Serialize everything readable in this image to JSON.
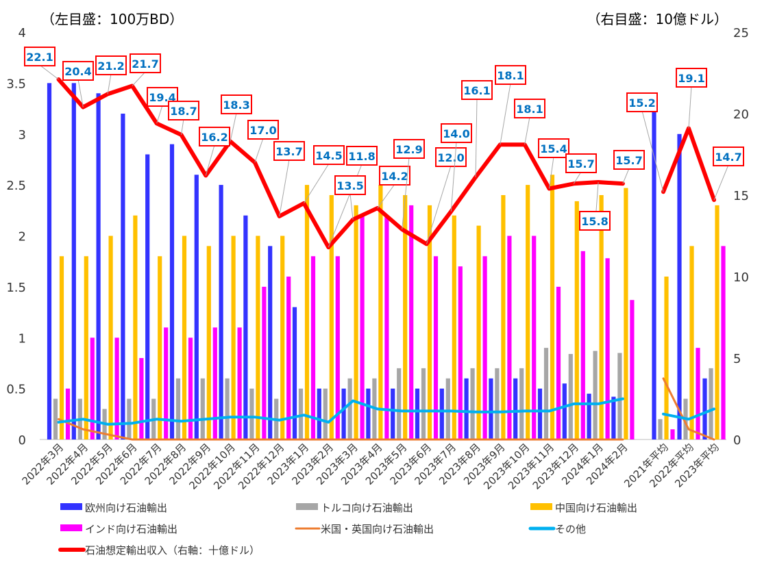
{
  "chart_data": {
    "type": "bar",
    "left_unit_label": "（左目盛：100万BD）",
    "right_unit_label": "（右目盛：10億ドル）",
    "categories": [
      "2022年3月",
      "2022年4月",
      "2022年5月",
      "2022年6月",
      "2022年7月",
      "2022年8月",
      "2022年9月",
      "2022年10月",
      "2022年11月",
      "2022年12月",
      "2023年1月",
      "2023年2月",
      "2023年3月",
      "2023年4月",
      "2023年5月",
      "2023年6月",
      "2023年7月",
      "2023年8月",
      "2023年9月",
      "2023年10月",
      "2023年11月",
      "2023年12月",
      "2024年1月",
      "2024年2月",
      "2021年平均",
      "2022年平均",
      "2023年平均"
    ],
    "ylim_left": [
      0,
      4
    ],
    "ylim_right": [
      0,
      25
    ],
    "yticks_left": [
      "0",
      "0.5",
      "1",
      "1.5",
      "2",
      "2.5",
      "3",
      "3.5",
      "4"
    ],
    "yticks_right": [
      "0",
      "5",
      "10",
      "15",
      "20",
      "25"
    ],
    "bar_series": [
      {
        "name": "欧州向け石油輸出",
        "color": "#3333ff",
        "values": [
          3.5,
          3.5,
          3.4,
          3.2,
          2.8,
          2.9,
          2.6,
          2.5,
          2.2,
          1.9,
          1.3,
          0.5,
          0.5,
          0.5,
          0.5,
          0.5,
          0.5,
          0.6,
          0.6,
          0.6,
          0.5,
          0.55,
          0.45,
          0.42,
          3.3,
          3.0,
          0.6
        ]
      },
      {
        "name": "トルコ向け石油輸出",
        "color": "#a6a6a6",
        "values": [
          0.4,
          0.4,
          0.3,
          0.4,
          0.4,
          0.6,
          0.6,
          0.6,
          0.5,
          0.4,
          0.5,
          0.5,
          0.6,
          0.6,
          0.7,
          0.7,
          0.6,
          0.7,
          0.7,
          0.7,
          0.9,
          0.84,
          0.87,
          0.85,
          0.2,
          0.4,
          0.7
        ]
      },
      {
        "name": "中国向け石油輸出",
        "color": "#ffc000",
        "values": [
          1.8,
          1.8,
          2.0,
          2.2,
          1.8,
          2.0,
          1.9,
          2.0,
          2.0,
          2.0,
          2.5,
          2.4,
          2.3,
          2.5,
          2.4,
          2.3,
          2.2,
          2.1,
          2.4,
          2.5,
          2.6,
          2.34,
          2.4,
          2.47,
          1.6,
          1.9,
          2.3
        ]
      },
      {
        "name": "インド向け石油輸出",
        "color": "#ff00ff",
        "values": [
          0.5,
          1.0,
          1.0,
          0.8,
          1.1,
          1.0,
          1.1,
          1.1,
          1.5,
          1.6,
          1.8,
          1.8,
          2.2,
          2.2,
          2.3,
          1.8,
          1.7,
          1.8,
          2.0,
          2.0,
          1.5,
          1.85,
          1.78,
          1.37,
          0.1,
          0.9,
          1.9
        ]
      }
    ],
    "line_series_left": [
      {
        "name": "米国・英国向け石油輸出",
        "color": "#ed7d31",
        "values": [
          0.2,
          0.1,
          0.05,
          0,
          0,
          0,
          0,
          0,
          0,
          0,
          0,
          0,
          0,
          0,
          0,
          0,
          0,
          0,
          0,
          0,
          0,
          0,
          0,
          0,
          0.6,
          0.1,
          0.0
        ]
      },
      {
        "name": "その他",
        "color": "#00b0f0",
        "values": [
          0.17,
          0.2,
          0.15,
          0.16,
          0.2,
          0.18,
          0.2,
          0.22,
          0.22,
          0.19,
          0.24,
          0.17,
          0.38,
          0.3,
          0.28,
          0.28,
          0.28,
          0.27,
          0.27,
          0.28,
          0.28,
          0.35,
          0.35,
          0.4,
          0.25,
          0.2,
          0.3
        ]
      }
    ],
    "revenue_series": {
      "name": "石油想定輸出収入（右軸：十億ドル）",
      "color": "#ff0000",
      "values": [
        22.1,
        20.4,
        21.2,
        21.7,
        19.4,
        18.7,
        16.2,
        18.3,
        17.0,
        13.7,
        14.5,
        11.8,
        13.5,
        14.2,
        12.9,
        12.0,
        14.0,
        16.1,
        18.1,
        18.1,
        15.4,
        15.7,
        15.8,
        15.7,
        15.2,
        19.1,
        14.7
      ],
      "labels": [
        "22.1",
        "20.4",
        "21.2",
        "21.7",
        "19.4",
        "18.7",
        "16.2",
        "18.3",
        "17.0",
        "13.7",
        "14.5",
        "11.8",
        "13.5",
        "14.2",
        "12.9",
        "12.0",
        "14.0",
        "16.1",
        "18.1",
        "18.1",
        "15.4",
        "15.7",
        "15.8",
        "15.7",
        "15.2",
        "19.1",
        "14.7"
      ]
    },
    "legend": [
      {
        "name": "欧州向け石油輸出",
        "color": "#3333ff",
        "kind": "bar"
      },
      {
        "name": "トルコ向け石油輸出",
        "color": "#a6a6a6",
        "kind": "bar"
      },
      {
        "name": "中国向け石油輸出",
        "color": "#ffc000",
        "kind": "bar"
      },
      {
        "name": "インド向け石油輸出",
        "color": "#ff00ff",
        "kind": "bar"
      },
      {
        "name": "米国・英国向け石油輸出",
        "color": "#ed7d31",
        "kind": "line"
      },
      {
        "name": "その他",
        "color": "#00b0f0",
        "kind": "line"
      },
      {
        "name": "石油想定輸出収入（右軸：十億ドル）",
        "color": "#ff0000",
        "kind": "thickline"
      }
    ],
    "legend_position": "bottom",
    "grid": false
  }
}
